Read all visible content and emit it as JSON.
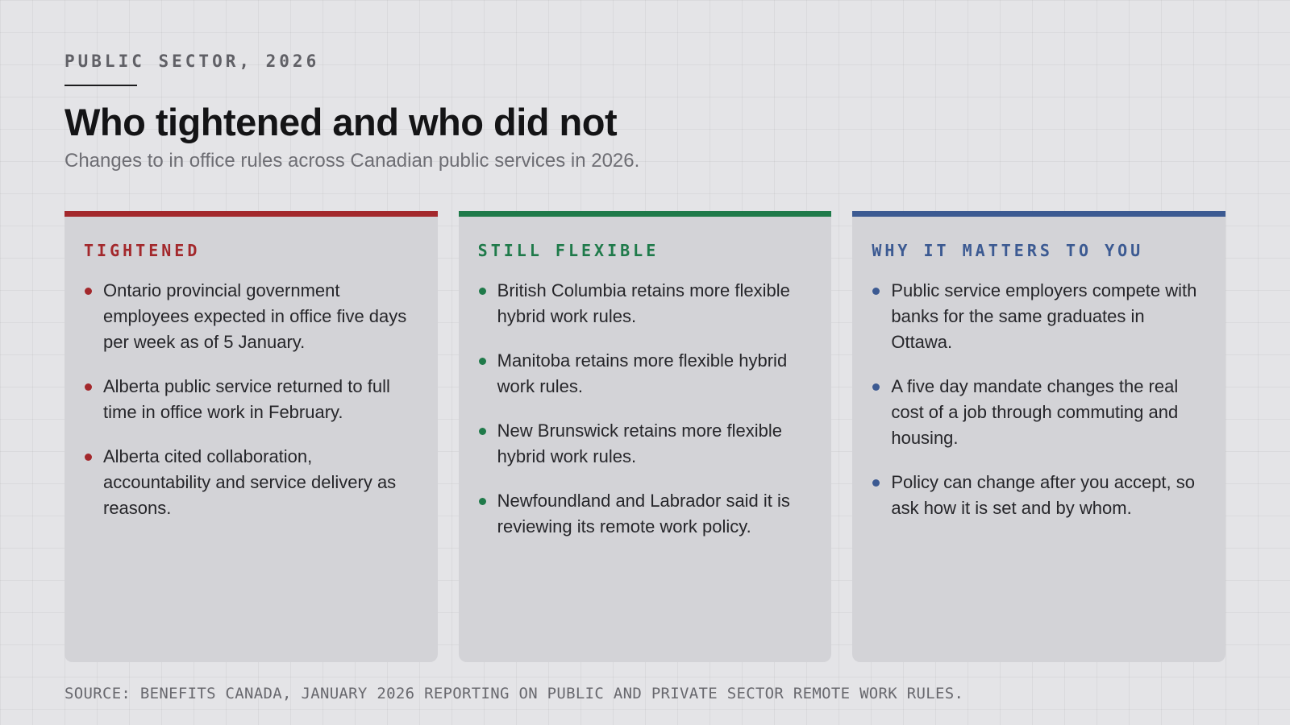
{
  "header": {
    "kicker": "PUBLIC SECTOR, 2026",
    "title": "Who tightened and who did not",
    "subtitle": "Changes to in office rules across Canadian public services in 2026."
  },
  "colors": {
    "tightened": "#a3282c",
    "flexible": "#1f7a4a",
    "matters": "#3c5a92"
  },
  "cards": [
    {
      "heading": "TIGHTENED",
      "color": "#a3282c",
      "items": [
        "Ontario provincial government employees expected in office five days per week as of 5 January.",
        "Alberta public service returned to full time in office work in February.",
        "Alberta cited collaboration, accountability and service delivery as reasons."
      ]
    },
    {
      "heading": "STILL FLEXIBLE",
      "color": "#1f7a4a",
      "items": [
        "British Columbia retains more flexible hybrid work rules.",
        "Manitoba retains more flexible hybrid work rules.",
        "New Brunswick retains more flexible hybrid work rules.",
        "Newfoundland and Labrador said it is reviewing its remote work policy."
      ]
    },
    {
      "heading": "WHY IT MATTERS TO YOU",
      "color": "#3c5a92",
      "items": [
        "Public service employers compete with banks for the same graduates in Ottawa.",
        "A five day mandate changes the real cost of a job through commuting and housing.",
        "Policy can change after you accept, so ask how it is set and by whom."
      ]
    }
  ],
  "footer": {
    "source": "SOURCE: BENEFITS CANADA, JANUARY 2026 REPORTING ON PUBLIC AND PRIVATE SECTOR REMOTE WORK RULES."
  }
}
